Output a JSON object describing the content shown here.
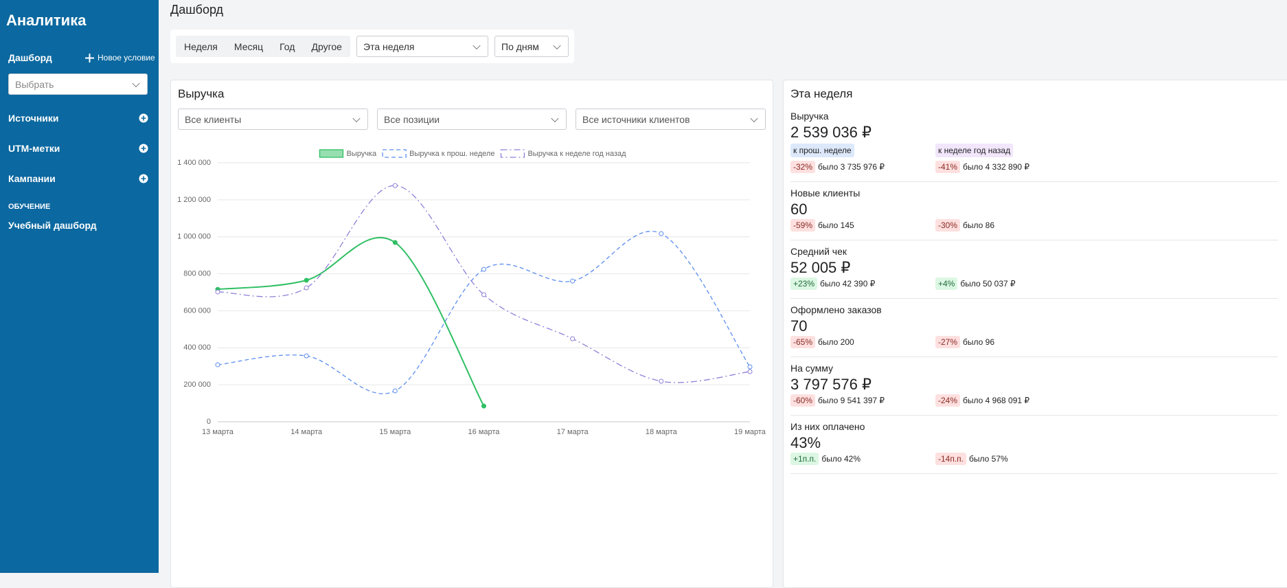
{
  "sidebar": {
    "title": "Аналитика",
    "dashboard_label": "Дашборд",
    "new_condition": "Новое условие",
    "select_placeholder": "Выбрать",
    "sections": [
      "Источники",
      "UTM-метки",
      "Кампании"
    ],
    "learning_heading": "ОБУЧЕНИЕ",
    "learning_item": "Учебный дашборд"
  },
  "header": {
    "title": "Дашборд"
  },
  "filters": {
    "periods": [
      "Неделя",
      "Месяц",
      "Год",
      "Другое"
    ],
    "range": "Эта неделя",
    "grouping": "По дням"
  },
  "chart_card": {
    "title": "Выручка",
    "filters": [
      "Все клиенты",
      "Все позиции",
      "Все источники клиентов"
    ]
  },
  "chart_data": {
    "type": "line",
    "categories": [
      "13 марта",
      "14 марта",
      "15 марта",
      "16 марта",
      "17 марта",
      "18 марта",
      "19 марта"
    ],
    "series": [
      {
        "name": "Выручка",
        "color": "#2fbf63",
        "line_style": "solid",
        "values": [
          716000,
          765000,
          969000,
          85000,
          null,
          null,
          null
        ]
      },
      {
        "name": "Выручка к прош. неделе",
        "color": "#5b8def",
        "line_style": "dashed",
        "values": [
          308000,
          356000,
          167000,
          824000,
          761000,
          1017000,
          297000
        ]
      },
      {
        "name": "Выручка к неделе год назад",
        "color": "#8e7fd8",
        "line_style": "dashdot",
        "values": [
          702000,
          724000,
          1277000,
          687000,
          449000,
          219000,
          271000
        ]
      }
    ],
    "ylim": [
      0,
      1400000
    ],
    "yticks": [
      0,
      {
        "value": 200000,
        "label": "200 000"
      },
      {
        "value": 400000,
        "label": "400 000"
      },
      {
        "value": 600000,
        "label": "600 000"
      },
      {
        "value": 800000,
        "label": "800 000"
      },
      {
        "value": 1000000,
        "label": "1 000 000"
      },
      {
        "value": 1200000,
        "label": "1 200 000"
      },
      {
        "value": 1400000,
        "label": "1 400 000"
      }
    ],
    "grid": true,
    "legend": "top"
  },
  "stats": {
    "title": "Эта неделя",
    "compare_labels": [
      "к прош. неделе",
      "к неделе год назад"
    ],
    "items": [
      {
        "label": "Выручка",
        "value": "2 539 036 ₽",
        "changes": [
          {
            "delta": "-32%",
            "was": "было 3 735 976 ₽"
          },
          {
            "delta": "-41%",
            "was": "было 4 332 890 ₽"
          }
        ]
      },
      {
        "label": "Новые клиенты",
        "value": "60",
        "changes": [
          {
            "delta": "-59%",
            "was": "было 145"
          },
          {
            "delta": "-30%",
            "was": "было 86"
          }
        ]
      },
      {
        "label": "Средний чек",
        "value": "52 005 ₽",
        "changes": [
          {
            "delta": "+23%",
            "was": "было 42 390 ₽"
          },
          {
            "delta": "+4%",
            "was": "было 50 037 ₽"
          }
        ]
      },
      {
        "label": "Оформлено заказов",
        "value": "70",
        "changes": [
          {
            "delta": "-65%",
            "was": "было 200"
          },
          {
            "delta": "-27%",
            "was": "было 96"
          }
        ]
      },
      {
        "label": "На сумму",
        "value": "3 797 576 ₽",
        "changes": [
          {
            "delta": "-60%",
            "was": "было 9 541 397 ₽"
          },
          {
            "delta": "-24%",
            "was": "было 4 968 091 ₽"
          }
        ]
      },
      {
        "label": "Из них оплачено",
        "value": "43%",
        "changes": [
          {
            "delta": "+1п.п.",
            "was": "было 42%"
          },
          {
            "delta": "-14п.п.",
            "was": "было 57%"
          }
        ]
      }
    ]
  }
}
